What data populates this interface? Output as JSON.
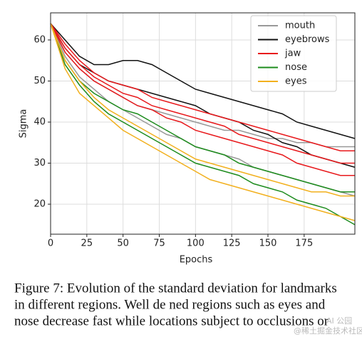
{
  "chart_data": {
    "type": "line",
    "xlabel": "Epochs",
    "ylabel": "Sigma",
    "x": [
      0,
      10,
      20,
      30,
      40,
      50,
      60,
      70,
      80,
      90,
      100,
      110,
      120,
      130,
      140,
      150,
      160,
      170,
      180,
      190,
      200,
      210
    ],
    "xlim": [
      0,
      210
    ],
    "ylim": [
      12.7,
      66.6
    ],
    "xticks": [
      0,
      25,
      50,
      75,
      100,
      125,
      150,
      175
    ],
    "yticks": [
      20,
      30,
      40,
      50,
      60
    ],
    "grid": true,
    "legend": "upper right",
    "series": [
      {
        "name": "mouth",
        "color": "#999999",
        "values": [
          [
            64,
            57,
            53,
            50,
            48,
            46,
            44,
            43,
            42,
            41,
            40,
            39,
            38,
            38,
            37,
            36,
            36,
            35,
            35,
            34,
            34,
            34
          ],
          [
            64,
            56,
            51,
            48,
            45,
            43,
            41,
            39,
            37,
            36,
            34,
            33,
            32,
            31,
            29,
            28,
            27,
            26,
            25,
            24,
            23,
            22
          ]
        ]
      },
      {
        "name": "eyebrows",
        "color": "#111111",
        "values": [
          [
            64,
            60,
            56,
            54,
            54,
            55,
            55,
            54,
            52,
            50,
            48,
            47,
            46,
            45,
            44,
            43,
            42,
            40,
            39,
            38,
            37,
            36
          ],
          [
            64,
            58,
            54,
            52,
            50,
            49,
            48,
            47,
            46,
            45,
            44,
            42,
            41,
            40,
            38,
            37,
            35,
            34,
            32,
            31,
            30,
            29
          ]
        ]
      },
      {
        "name": "jaw",
        "color": "#e8191c",
        "values": [
          [
            64,
            59,
            55,
            52,
            50,
            49,
            48,
            46,
            45,
            44,
            43,
            42,
            41,
            40,
            39,
            38,
            37,
            36,
            35,
            34,
            33,
            33
          ],
          [
            64,
            58,
            54,
            51,
            49,
            47,
            46,
            44,
            43,
            42,
            41,
            40,
            39,
            37,
            36,
            35,
            34,
            33,
            32,
            31,
            30,
            30
          ],
          [
            64,
            57,
            53,
            50,
            48,
            46,
            44,
            43,
            41,
            40,
            38,
            37,
            36,
            35,
            34,
            33,
            32,
            30,
            29,
            28,
            27,
            27
          ]
        ]
      },
      {
        "name": "nose",
        "color": "#1e8c1e",
        "values": [
          [
            64,
            55,
            50,
            47,
            45,
            43,
            42,
            40,
            38,
            36,
            34,
            33,
            32,
            30,
            29,
            28,
            27,
            26,
            25,
            24,
            23,
            23
          ],
          [
            64,
            54,
            49,
            45,
            42,
            40,
            38,
            36,
            34,
            32,
            30,
            29,
            28,
            27,
            25,
            24,
            23,
            21,
            20,
            19,
            17,
            15
          ]
        ]
      },
      {
        "name": "eyes",
        "color": "#f2b01e",
        "values": [
          [
            64,
            55,
            50,
            46,
            43,
            41,
            39,
            37,
            35,
            33,
            31,
            30,
            29,
            28,
            27,
            26,
            25,
            24,
            23,
            23,
            22,
            22
          ],
          [
            64,
            53,
            47,
            44,
            41,
            38,
            36,
            34,
            32,
            30,
            28,
            26,
            25,
            24,
            23,
            22,
            21,
            20,
            19,
            18,
            17,
            16
          ]
        ]
      }
    ]
  },
  "caption": [
    "Figure 7: Evolution of the standard deviation for landmarks",
    "in different regions. Well de   ned regions such as eyes and",
    "nose decrease fast while locations subject to occlusions or"
  ],
  "watermarks": [
    "AI 公园",
    "@稀土掘金技术社区"
  ]
}
